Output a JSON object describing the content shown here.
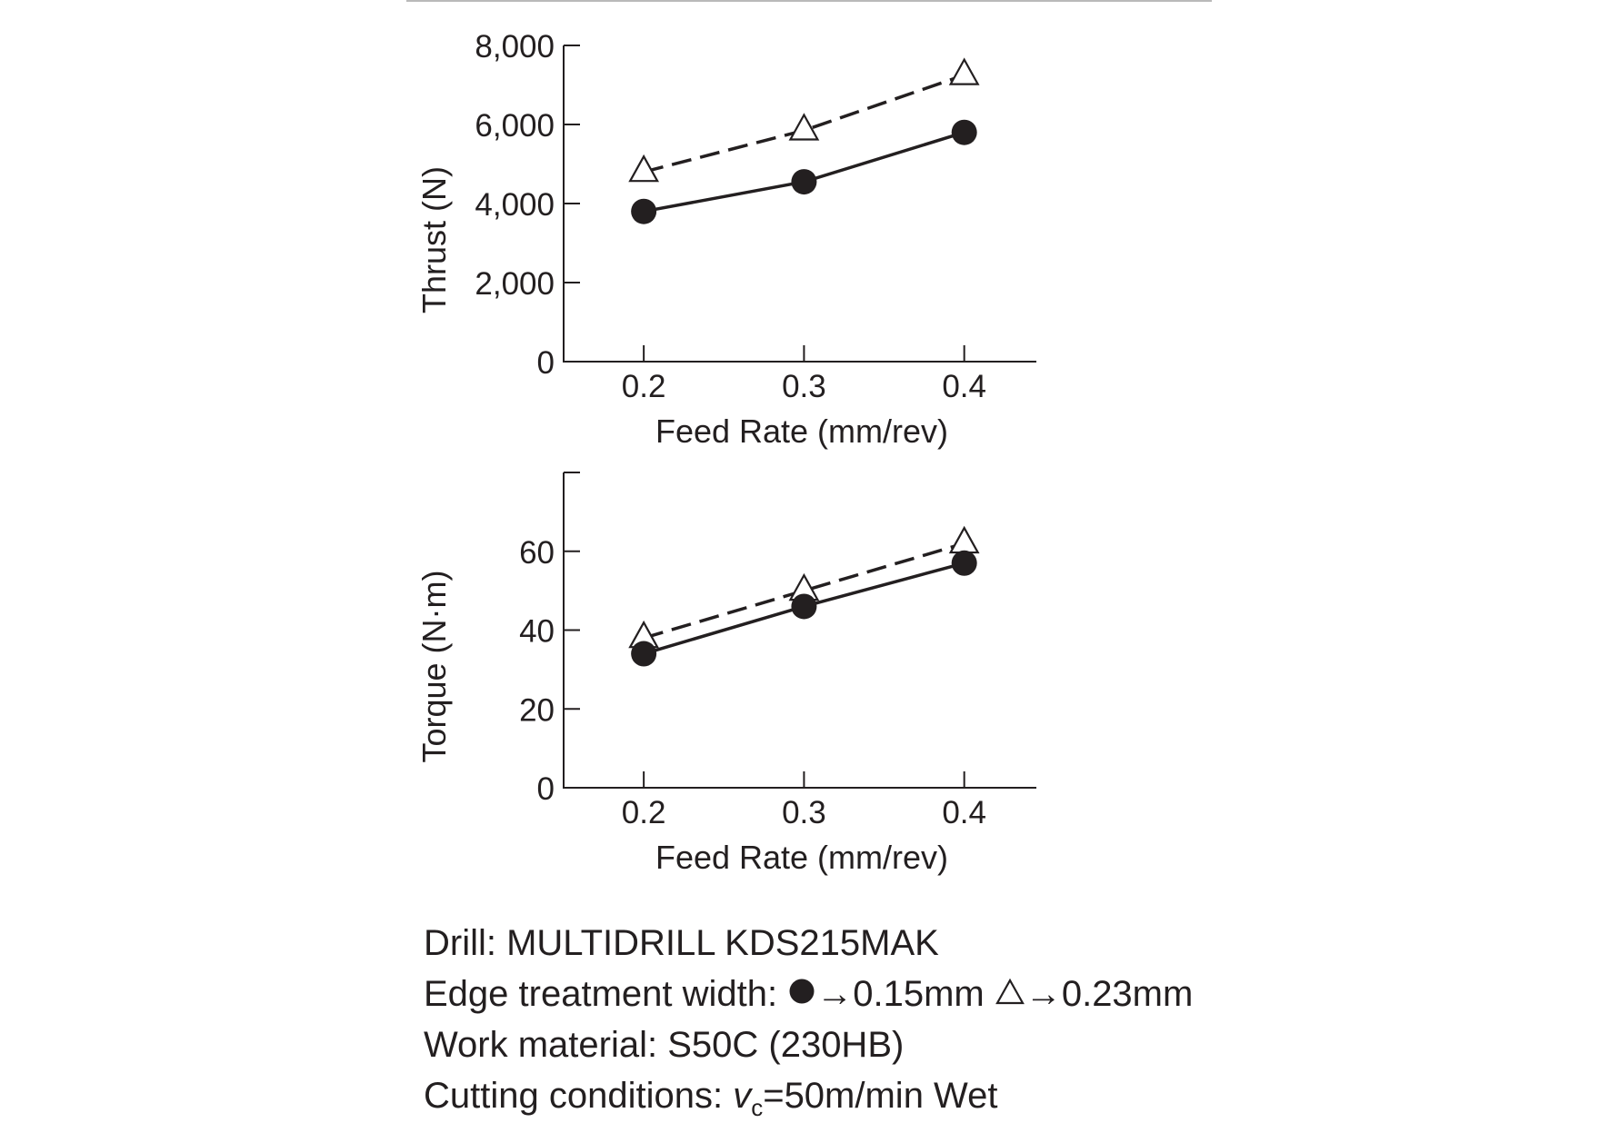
{
  "chart_data": [
    {
      "type": "line",
      "xlabel": "Feed Rate (mm/rev)",
      "ylabel": "Thrust (N)",
      "x": [
        0.2,
        0.3,
        0.4
      ],
      "x_ticks": [
        "0.2",
        "0.3",
        "0.4"
      ],
      "xlim": [
        0.15,
        0.445
      ],
      "ylim": [
        0,
        8000
      ],
      "y_ticks": [
        "0",
        "2,000",
        "4,000",
        "6,000",
        "8,000"
      ],
      "y_tick_values": [
        0,
        2000,
        4000,
        6000,
        8000
      ],
      "grid": false,
      "series": [
        {
          "marker": "filled-circle",
          "line": "solid",
          "values": [
            3800,
            4550,
            5800
          ]
        },
        {
          "marker": "open-triangle",
          "line": "dashed",
          "values": [
            4800,
            5850,
            7250
          ]
        }
      ]
    },
    {
      "type": "line",
      "xlabel": "Feed Rate (mm/rev)",
      "ylabel": "Torque (N·m)",
      "x": [
        0.2,
        0.3,
        0.4
      ],
      "x_ticks": [
        "0.2",
        "0.3",
        "0.4"
      ],
      "xlim": [
        0.15,
        0.445
      ],
      "ylim": [
        0,
        80
      ],
      "y_ticks": [
        "0",
        "20",
        "40",
        "60"
      ],
      "y_tick_values": [
        0,
        20,
        40,
        60
      ],
      "grid": false,
      "series": [
        {
          "marker": "filled-circle",
          "line": "solid",
          "values": [
            34,
            46,
            57
          ]
        },
        {
          "marker": "open-triangle",
          "line": "dashed",
          "values": [
            38,
            50,
            62
          ]
        }
      ]
    }
  ],
  "notes": {
    "drill": "Drill: MULTIDRILL KDS215MAK",
    "edge_prefix": "Edge treatment width: ",
    "edge_circle_value": "→0.15mm ",
    "edge_triangle_value": "→0.23mm",
    "work_material": "Work material: S50C (230HB)",
    "cutting_prefix": "Cutting conditions: ",
    "cutting_v": "v",
    "cutting_sub": "c",
    "cutting_suffix": "=50m/min  Wet"
  },
  "colors": {
    "ink": "#231f20",
    "rule": "#b9b9b9",
    "background": "#ffffff"
  }
}
